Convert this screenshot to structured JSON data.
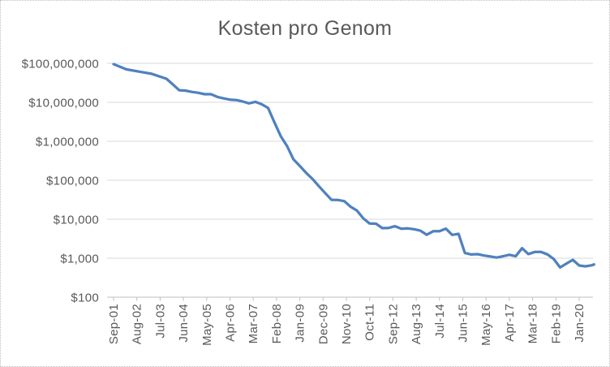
{
  "chart_data": {
    "type": "line",
    "title": "Kosten pro Genom",
    "xlabel": "",
    "ylabel": "",
    "y_scale": "log10",
    "ylim": [
      100,
      100000000
    ],
    "grid": "horizontal-major",
    "legend": "none",
    "line_color": "#4F81BD",
    "grid_color": "#d9d9d9",
    "axis_color": "#bfbfbf",
    "text_color": "#595959",
    "y_tick_labels": [
      "$100,000,000",
      "$10,000,000",
      "$1,000,000",
      "$100,000",
      "$10,000",
      "$1,000",
      "$100"
    ],
    "y_tick_values": [
      100000000,
      10000000,
      1000000,
      100000,
      10000,
      1000,
      100
    ],
    "x_tick_interval_months": 11,
    "x_tick_labels": [
      "Sep-01",
      "Aug-02",
      "Jul-03",
      "Jun-04",
      "May-05",
      "Apr-06",
      "Mar-07",
      "Feb-08",
      "Jan-09",
      "Dec-09",
      "Nov-10",
      "Oct-11",
      "Sep-12",
      "Aug-13",
      "Jul-14",
      "Jun-15",
      "May-16",
      "Apr-17",
      "Mar-18",
      "Feb-19",
      "Jan-20"
    ],
    "series": [
      {
        "name": "Kosten pro Genom",
        "points": [
          [
            "Sep-01",
            95263072
          ],
          [
            "Mar-02",
            70175437
          ],
          [
            "Sep-02",
            61448422
          ],
          [
            "Mar-03",
            53751684
          ],
          [
            "Oct-03",
            40157554
          ],
          [
            "Jan-04",
            28780376
          ],
          [
            "Apr-04",
            20442576
          ],
          [
            "Jul-04",
            19934346
          ],
          [
            "Oct-04",
            18519312
          ],
          [
            "Jan-05",
            17534970
          ],
          [
            "Apr-05",
            16159699
          ],
          [
            "Jul-05",
            16180224
          ],
          [
            "Oct-05",
            13801124
          ],
          [
            "Jan-06",
            12585659
          ],
          [
            "Apr-06",
            11732535
          ],
          [
            "Jul-06",
            11455315
          ],
          [
            "Oct-06",
            10474556
          ],
          [
            "Jan-07",
            9408739
          ],
          [
            "Apr-07",
            10314926
          ],
          [
            "Jul-07",
            8927342
          ],
          [
            "Oct-07",
            7147571
          ],
          [
            "Jan-08",
            3063820
          ],
          [
            "Apr-08",
            1352982
          ],
          [
            "Jul-08",
            752080
          ],
          [
            "Oct-08",
            342502
          ],
          [
            "Jan-09",
            232735
          ],
          [
            "Apr-09",
            154714
          ],
          [
            "Jul-09",
            108065
          ],
          [
            "Oct-09",
            70333
          ],
          [
            "Jan-10",
            46774
          ],
          [
            "Apr-10",
            31512
          ],
          [
            "Jul-10",
            31125
          ],
          [
            "Oct-10",
            29092
          ],
          [
            "Jan-11",
            20963
          ],
          [
            "Apr-11",
            16712
          ],
          [
            "Jul-11",
            10497
          ],
          [
            "Oct-11",
            7743
          ],
          [
            "Jan-12",
            7666
          ],
          [
            "Apr-12",
            5901
          ],
          [
            "Jul-12",
            5985
          ],
          [
            "Oct-12",
            6618
          ],
          [
            "Jan-13",
            5671
          ],
          [
            "Apr-13",
            5826
          ],
          [
            "Jul-13",
            5550
          ],
          [
            "Oct-13",
            5096
          ],
          [
            "Jan-14",
            4008
          ],
          [
            "Apr-14",
            4920
          ],
          [
            "Jul-14",
            4905
          ],
          [
            "Oct-14",
            5731
          ],
          [
            "Jan-15",
            3970
          ],
          [
            "Apr-15",
            4211
          ],
          [
            "Jul-15",
            1363
          ],
          [
            "Oct-15",
            1245
          ],
          [
            "Jan-16",
            1271
          ],
          [
            "Apr-16",
            1172
          ],
          [
            "Jul-16",
            1105
          ],
          [
            "Oct-16",
            1037
          ],
          [
            "Jan-17",
            1121
          ],
          [
            "Apr-17",
            1221
          ],
          [
            "Jul-17",
            1121
          ],
          [
            "Oct-17",
            1800
          ],
          [
            "Jan-18",
            1280
          ],
          [
            "Apr-18",
            1450
          ],
          [
            "Jul-18",
            1450
          ],
          [
            "Oct-18",
            1250
          ],
          [
            "Jan-19",
            950
          ],
          [
            "Apr-19",
            580
          ],
          [
            "Jul-19",
            730
          ],
          [
            "Oct-19",
            910
          ],
          [
            "Jan-20",
            650
          ],
          [
            "Apr-20",
            620
          ],
          [
            "Jul-20",
            660
          ],
          [
            "Aug-20",
            690
          ]
        ]
      }
    ]
  }
}
